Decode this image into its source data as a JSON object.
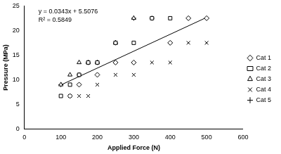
{
  "chart_data": {
    "type": "scatter",
    "x_label": "Applied Force (N)",
    "y_label": "Pressure (MPa)",
    "xlim": [
      0,
      600
    ],
    "xticks": [
      0,
      100,
      200,
      300,
      400,
      500,
      600
    ],
    "ylim": [
      0,
      25
    ],
    "yticks": [
      0,
      5,
      10,
      15,
      20,
      25
    ],
    "grid": false,
    "legend": "right",
    "annotations": [
      "y = 0.0343x + 5.5076",
      "R² = 0.5849"
    ],
    "trendline": {
      "x": [
        100,
        500
      ],
      "values": [
        8.94,
        22.66
      ],
      "color": "#000000"
    },
    "series": [
      {
        "name": "Cat 1",
        "color": "#000000",
        "marker": "diamond",
        "x": [
          125,
          150,
          200,
          250,
          300,
          400,
          450,
          500
        ],
        "values": [
          6.7,
          9,
          11,
          13.5,
          13.5,
          17.5,
          22.5,
          22.5
        ]
      },
      {
        "name": "Cat 2",
        "color": "#000000",
        "marker": "square",
        "x": [
          100,
          125,
          150,
          175,
          200,
          250,
          300,
          350,
          400
        ],
        "values": [
          6.7,
          9,
          11,
          13.5,
          13.5,
          17.5,
          17.5,
          22.5,
          22.5
        ]
      },
      {
        "name": "Cat 3",
        "color": "#000000",
        "marker": "triangle",
        "x": [
          100,
          125,
          150,
          175,
          200,
          250,
          300
        ],
        "values": [
          9,
          11,
          13.5,
          13.5,
          13.5,
          17.5,
          22.5
        ]
      },
      {
        "name": "Cat 4",
        "color": "#000000",
        "marker": "x",
        "x": [
          125,
          150,
          175,
          200,
          250,
          300,
          350,
          400,
          450,
          500
        ],
        "values": [
          6.7,
          6.7,
          6.7,
          9,
          11,
          11,
          13.5,
          13.5,
          17.5,
          17.5
        ]
      },
      {
        "name": "Cat 5",
        "color": "#000000",
        "marker": "plus",
        "x": [
          100,
          150,
          175,
          200,
          250,
          300,
          350
        ],
        "values": [
          9,
          11,
          13.5,
          13.5,
          17.5,
          22.5,
          22.5
        ]
      }
    ]
  }
}
